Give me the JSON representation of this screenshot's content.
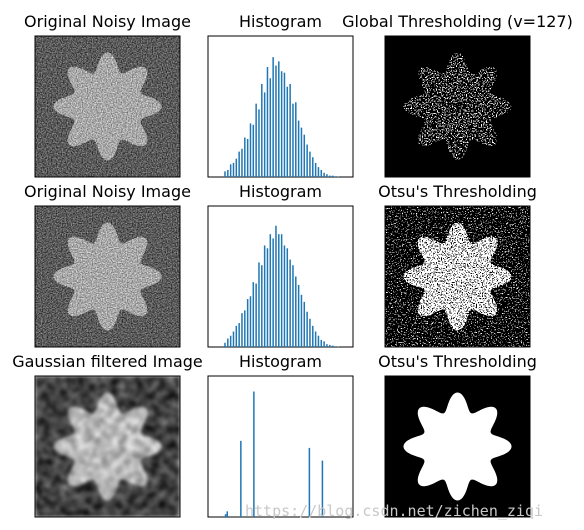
{
  "chart_data": [
    {
      "type": "image",
      "title": "Original Noisy Image"
    },
    {
      "type": "bar",
      "title": "Histogram",
      "color": "#1f77b4",
      "xlim": [
        0,
        256
      ],
      "ylim": [
        0,
        100
      ],
      "x": [
        30,
        35,
        40,
        45,
        50,
        55,
        60,
        65,
        70,
        75,
        80,
        85,
        90,
        95,
        100,
        105,
        110,
        115,
        120,
        125,
        130,
        135,
        140,
        145,
        150,
        155,
        160,
        165,
        170,
        175,
        180,
        185,
        190,
        195,
        200,
        205,
        210,
        215,
        220,
        225,
        230
      ],
      "values": [
        4,
        5,
        9,
        10,
        13,
        18,
        20,
        28,
        27,
        38,
        37,
        52,
        48,
        66,
        60,
        78,
        70,
        85,
        79,
        82,
        75,
        74,
        64,
        66,
        52,
        53,
        40,
        35,
        30,
        23,
        18,
        14,
        10,
        7,
        5,
        3,
        2,
        1,
        1,
        0.5,
        0.3
      ]
    },
    {
      "type": "image",
      "title": "Global Thresholding (v=127)"
    },
    {
      "type": "image",
      "title": "Original Noisy Image"
    },
    {
      "type": "bar",
      "title": "Histogram",
      "color": "#1f77b4",
      "xlim": [
        0,
        256
      ],
      "ylim": [
        0,
        100
      ],
      "x": [
        30,
        35,
        40,
        45,
        50,
        55,
        60,
        65,
        70,
        75,
        80,
        85,
        90,
        95,
        100,
        105,
        110,
        115,
        120,
        125,
        130,
        135,
        140,
        145,
        150,
        155,
        160,
        165,
        170,
        175,
        180,
        185,
        190,
        195,
        200,
        205,
        210,
        215,
        220,
        225,
        230
      ],
      "values": [
        3,
        6,
        8,
        11,
        15,
        17,
        24,
        26,
        34,
        36,
        46,
        45,
        60,
        58,
        72,
        70,
        80,
        77,
        86,
        80,
        80,
        72,
        70,
        62,
        58,
        50,
        44,
        37,
        32,
        25,
        20,
        15,
        11,
        8,
        5,
        4,
        2,
        1.5,
        1,
        0.5,
        0.3
      ]
    },
    {
      "type": "image",
      "title": "Otsu's Thresholding"
    },
    {
      "type": "image",
      "title": "Gaussian filtered Image"
    },
    {
      "type": "bar",
      "title": "Histogram",
      "color": "#1f77b4",
      "xlim": [
        0,
        256
      ],
      "ylim": [
        0,
        100
      ],
      "x": [
        31,
        34,
        58,
        81,
        179,
        202
      ],
      "values": [
        2,
        4,
        54,
        89,
        49,
        40
      ]
    },
    {
      "type": "image",
      "title": "Otsu's Thresholding"
    }
  ],
  "watermark": "https://blog.csdn.net/zichen_ziqi"
}
